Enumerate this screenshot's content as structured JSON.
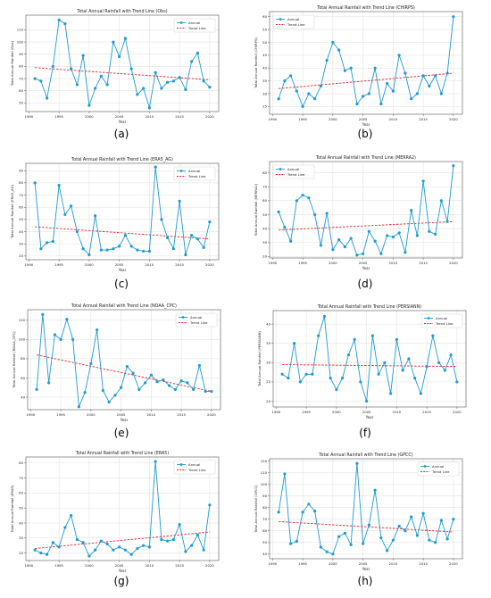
{
  "figure": {
    "panel_labels": [
      "(a)",
      "(b)",
      "(c)",
      "(d)",
      "(e)",
      "(f)",
      "(g)",
      "(h)"
    ]
  },
  "colors": {
    "series": "#1f9bcf",
    "trend": "#e3262b",
    "grid": "#dedede",
    "axis": "#555555",
    "text": "#222222"
  },
  "chart_data": [
    {
      "type": "line",
      "title": "Total Annual Rainfall with Trend Line (Obs)",
      "xlabel": "Year",
      "ylabel": "Total Annual Rainfall (Obs)",
      "xlim": [
        1989.5,
        2021.5
      ],
      "ylim": [
        43,
        122
      ],
      "xticks": [
        1990,
        1995,
        2000,
        2005,
        2010,
        2015,
        2020
      ],
      "yticks": [
        50,
        60,
        70,
        80,
        90,
        100,
        110
      ],
      "legend": "top-right",
      "grid": true,
      "series": [
        {
          "name": "Annual",
          "x": [
            1991,
            1992,
            1993,
            1994,
            1995,
            1996,
            1997,
            1998,
            1999,
            2000,
            2001,
            2002,
            2003,
            2004,
            2005,
            2006,
            2007,
            2008,
            2009,
            2010,
            2011,
            2012,
            2013,
            2014,
            2015,
            2016,
            2017,
            2018,
            2019,
            2020
          ],
          "values": [
            70,
            68,
            54,
            80,
            118,
            115,
            78,
            65,
            89,
            48,
            62,
            72,
            65,
            100,
            88,
            103,
            78,
            57,
            62,
            46,
            75,
            62,
            67,
            68,
            71,
            61,
            84,
            91,
            68,
            63
          ]
        },
        {
          "name": "Trend Line",
          "x": [
            1991,
            2020
          ],
          "values": [
            79,
            69
          ]
        }
      ]
    },
    {
      "type": "line",
      "title": "Total Annual Rainfall with Trend Line (CHIRPS)",
      "xlabel": "Year",
      "ylabel": "Total Annual Rainfall (CHIRPS)",
      "xlim": [
        1989.5,
        2021.5
      ],
      "ylim": [
        22,
        62
      ],
      "xticks": [
        1990,
        1995,
        2000,
        2005,
        2010,
        2015,
        2020
      ],
      "yticks": [
        25,
        30,
        35,
        40,
        45,
        50,
        55,
        60
      ],
      "legend": "top-left",
      "grid": true,
      "series": [
        {
          "name": "Annual",
          "x": [
            1991,
            1992,
            1993,
            1994,
            1995,
            1996,
            1997,
            1998,
            1999,
            2000,
            2001,
            2002,
            2003,
            2004,
            2005,
            2006,
            2007,
            2008,
            2009,
            2010,
            2011,
            2012,
            2013,
            2014,
            2015,
            2016,
            2017,
            2018,
            2019,
            2020
          ],
          "values": [
            28,
            35,
            37,
            31,
            25,
            30,
            28,
            33,
            43,
            50,
            47,
            39,
            40,
            26,
            29,
            30,
            40,
            26,
            34,
            31,
            45,
            38,
            28,
            30,
            37,
            33,
            37,
            30,
            38,
            60
          ]
        },
        {
          "name": "Trend Line",
          "x": [
            1991,
            2020
          ],
          "values": [
            32,
            38
          ]
        }
      ]
    },
    {
      "type": "line",
      "title": "Total Annual Rainfall with Trend Line (ERA5_AG)",
      "xlabel": "Year",
      "ylabel": "Total Annual Rainfall (ERA5_AG)",
      "xlim": [
        1989.5,
        2021.5
      ],
      "ylim": [
        17,
        96
      ],
      "xticks": [
        1990,
        1995,
        2000,
        2005,
        2010,
        2015,
        2020
      ],
      "yticks": [
        20,
        30,
        40,
        50,
        60,
        70,
        80,
        90
      ],
      "legend": "top-right",
      "grid": true,
      "series": [
        {
          "name": "Annual",
          "x": [
            1991,
            1992,
            1993,
            1994,
            1995,
            1996,
            1997,
            1998,
            1999,
            2000,
            2001,
            2002,
            2003,
            2004,
            2005,
            2006,
            2007,
            2008,
            2009,
            2010,
            2011,
            2012,
            2013,
            2014,
            2015,
            2016,
            2017,
            2018,
            2019,
            2020
          ],
          "values": [
            80,
            26,
            31,
            32,
            78,
            54,
            61,
            40,
            26,
            21,
            53,
            25,
            25,
            26,
            28,
            37,
            28,
            25,
            24,
            24,
            93,
            50,
            35,
            26,
            65,
            21,
            37,
            34,
            27,
            48
          ]
        },
        {
          "name": "Trend Line",
          "x": [
            1991,
            2020
          ],
          "values": [
            44,
            34
          ]
        }
      ]
    },
    {
      "type": "line",
      "title": "Total Annual Rainfall with Trend Line (MERRA2)",
      "xlabel": "Year",
      "ylabel": "Total Annual Rainfall (MERRA2)",
      "xlim": [
        1989.5,
        2021.5
      ],
      "ylim": [
        19,
        88
      ],
      "xticks": [
        1990,
        1995,
        2000,
        2005,
        2010,
        2015,
        2020
      ],
      "yticks": [
        20,
        30,
        40,
        50,
        60,
        70,
        80
      ],
      "legend": "top-left",
      "grid": true,
      "series": [
        {
          "name": "Annual",
          "x": [
            1991,
            1992,
            1993,
            1994,
            1995,
            1996,
            1997,
            1998,
            1999,
            2000,
            2001,
            2002,
            2003,
            2004,
            2005,
            2006,
            2007,
            2008,
            2009,
            2010,
            2011,
            2012,
            2013,
            2014,
            2015,
            2016,
            2017,
            2018,
            2019,
            2020
          ],
          "values": [
            52,
            41,
            31,
            60,
            64,
            62,
            50,
            28,
            51,
            25,
            32,
            27,
            33,
            21,
            22,
            38,
            31,
            22,
            35,
            34,
            37,
            23,
            53,
            35,
            74,
            38,
            36,
            60,
            45,
            85
          ]
        },
        {
          "name": "Trend Line",
          "x": [
            1991,
            2020
          ],
          "values": [
            39,
            45
          ]
        }
      ]
    },
    {
      "type": "line",
      "title": "Total Annual Rainfall with Trend Line (NOAA_CPC)",
      "xlabel": "Year",
      "ylabel": "Total Annual Rainfall (NOAA_CPC)",
      "xlim": [
        1989.5,
        2021.5
      ],
      "ylim": [
        27,
        131
      ],
      "xticks": [
        1990,
        1995,
        2000,
        2005,
        2010,
        2015,
        2020
      ],
      "yticks": [
        40,
        60,
        80,
        100,
        120
      ],
      "legend": "top-right",
      "grid": true,
      "series": [
        {
          "name": "Annual",
          "x": [
            1991,
            1992,
            1993,
            1994,
            1995,
            1996,
            1997,
            1998,
            1999,
            2000,
            2001,
            2002,
            2003,
            2004,
            2005,
            2006,
            2007,
            2008,
            2009,
            2010,
            2011,
            2012,
            2013,
            2014,
            2015,
            2016,
            2017,
            2018,
            2019,
            2020
          ],
          "values": [
            48,
            126,
            55,
            105,
            100,
            121,
            100,
            30,
            45,
            75,
            110,
            47,
            35,
            42,
            50,
            72,
            65,
            48,
            55,
            63,
            56,
            58,
            52,
            48,
            57,
            55,
            48,
            73,
            46,
            46
          ]
        },
        {
          "name": "Trend Line",
          "x": [
            1991,
            2020
          ],
          "values": [
            84,
            46
          ]
        }
      ]
    },
    {
      "type": "line",
      "title": "Total Annual Rainfall with Trend Line (PERSIANN)",
      "xlabel": "Year",
      "ylabel": "Total Annual Rainfall (PERSIANN)",
      "xlim": [
        1989.5,
        2021.5
      ],
      "ylim": [
        18.5,
        43.5
      ],
      "xticks": [
        1990,
        1995,
        2000,
        2005,
        2010,
        2015,
        2020
      ],
      "yticks": [
        20,
        25,
        30,
        35,
        40
      ],
      "legend": "top-right",
      "grid": true,
      "series": [
        {
          "name": "Annual",
          "x": [
            1991,
            1992,
            1993,
            1994,
            1995,
            1996,
            1997,
            1998,
            1999,
            2000,
            2001,
            2002,
            2003,
            2004,
            2005,
            2006,
            2007,
            2008,
            2009,
            2010,
            2011,
            2012,
            2013,
            2014,
            2015,
            2016,
            2017,
            2018,
            2019,
            2020
          ],
          "values": [
            27,
            26,
            35,
            25,
            27,
            27,
            37,
            42,
            26,
            23,
            26,
            32,
            36,
            25,
            20,
            37,
            27,
            30,
            22,
            36,
            28,
            31,
            26,
            22,
            29,
            37,
            30,
            28,
            32,
            25
          ]
        },
        {
          "name": "Trend Line",
          "x": [
            1991,
            2020
          ],
          "values": [
            29.5,
            29
          ]
        }
      ]
    },
    {
      "type": "line",
      "title": "Total Annual Rainfall with Trend Line (ERA5)",
      "xlabel": "Year",
      "ylabel": "Total Annual Rainfall (ERA5)",
      "xlim": [
        1989.5,
        2021.5
      ],
      "ylim": [
        15,
        84
      ],
      "xticks": [
        1990,
        1995,
        2000,
        2005,
        2010,
        2015,
        2020
      ],
      "yticks": [
        20,
        30,
        40,
        50,
        60,
        70,
        80
      ],
      "legend": "top-right",
      "grid": true,
      "series": [
        {
          "name": "Annual",
          "x": [
            1991,
            1992,
            1993,
            1994,
            1995,
            1996,
            1997,
            1998,
            1999,
            2000,
            2001,
            2002,
            2003,
            2004,
            2005,
            2006,
            2007,
            2008,
            2009,
            2010,
            2011,
            2012,
            2013,
            2014,
            2015,
            2016,
            2017,
            2018,
            2019,
            2020
          ],
          "values": [
            22,
            20,
            19,
            27,
            24,
            37,
            45,
            29,
            27,
            18,
            22,
            28,
            26,
            22,
            24,
            22,
            19,
            23,
            25,
            24,
            81,
            29,
            28,
            29,
            39,
            21,
            25,
            32,
            22,
            52
          ]
        },
        {
          "name": "Trend Line",
          "x": [
            1991,
            2020
          ],
          "values": [
            23,
            34
          ]
        }
      ]
    },
    {
      "type": "line",
      "title": "Total Annual Rainfall with Trend Line (GPCC)",
      "xlabel": "Year",
      "ylabel": "Total Annual Rainfall (GPCC)",
      "xlim": [
        1989.5,
        2021.5
      ],
      "ylim": [
        36,
        122
      ],
      "xticks": [
        1990,
        1995,
        2000,
        2005,
        2010,
        2015,
        2020
      ],
      "yticks": [
        40,
        50,
        60,
        70,
        80,
        90,
        100,
        110,
        120
      ],
      "legend": "top-right",
      "grid": true,
      "series": [
        {
          "name": "Annual",
          "x": [
            1991,
            1992,
            1993,
            1994,
            1995,
            1996,
            1997,
            1998,
            1999,
            2000,
            2001,
            2002,
            2003,
            2004,
            2005,
            2006,
            2007,
            2008,
            2009,
            2010,
            2011,
            2012,
            2013,
            2014,
            2015,
            2016,
            2017,
            2018,
            2019,
            2020
          ],
          "values": [
            76,
            109,
            49,
            51,
            76,
            83,
            77,
            46,
            42,
            40,
            55,
            58,
            48,
            118,
            49,
            65,
            95,
            54,
            43,
            52,
            64,
            60,
            72,
            56,
            75,
            52,
            50,
            69,
            53,
            70
          ]
        },
        {
          "name": "Trend Line",
          "x": [
            1991,
            2020
          ],
          "values": [
            68,
            59
          ]
        }
      ]
    }
  ]
}
